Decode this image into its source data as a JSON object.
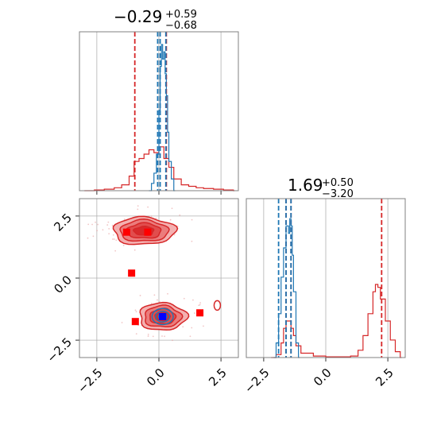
{
  "chart_data": {
    "type": "corner",
    "colors": {
      "series_a": "#1f77b4",
      "series_b": "#d62728",
      "marker_red": "#ff0000",
      "marker_blue": "#0000ff"
    },
    "params": [
      {
        "title_median": "−0.29",
        "title_plus": "+0.59",
        "title_minus": "−0.68",
        "range": [
          -3.2,
          3.2
        ]
      },
      {
        "title_median": "1.69",
        "title_plus": "+0.50",
        "title_minus": "−3.20",
        "range": [
          -3.2,
          3.2
        ]
      }
    ],
    "tick_values": [
      -2.5,
      0.0,
      2.5
    ],
    "tick_labels": [
      "−2.5",
      "0.0",
      "2.5"
    ],
    "grid": true,
    "series_a": {
      "quantiles_p1": [
        -0.05,
        0.05,
        0.28
      ],
      "quantiles_p2": [
        -1.9,
        -1.6,
        -1.4
      ],
      "hist_p1": {
        "x": [
          -0.4,
          -0.3,
          -0.2,
          -0.1,
          0.0,
          0.05,
          0.1,
          0.15,
          0.2,
          0.25,
          0.3,
          0.35,
          0.4,
          0.5,
          0.6
        ],
        "y": [
          0.0,
          0.05,
          0.12,
          0.25,
          0.55,
          0.85,
          1.0,
          0.9,
          0.95,
          0.8,
          0.65,
          0.4,
          0.2,
          0.08,
          0.0
        ]
      },
      "hist_p2": {
        "x": [
          -2.1,
          -2.0,
          -1.9,
          -1.8,
          -1.7,
          -1.6,
          -1.5,
          -1.45,
          -1.4,
          -1.35,
          -1.3,
          -1.2,
          -1.1
        ],
        "y": [
          0.0,
          0.1,
          0.3,
          0.55,
          0.75,
          0.9,
          0.85,
          0.95,
          0.9,
          0.7,
          0.45,
          0.1,
          0.0
        ]
      }
    },
    "series_b": {
      "quantiles_p1": [
        -0.97,
        0.3
      ],
      "quantiles_p2": [
        -1.6,
        -1.4,
        2.25
      ],
      "hist_p1": {
        "x": [
          -3.0,
          -2.6,
          -2.2,
          -1.8,
          -1.5,
          -1.2,
          -1.0,
          -0.8,
          -0.6,
          -0.4,
          -0.2,
          0.0,
          0.2,
          0.4,
          0.6,
          0.9,
          1.2,
          1.5,
          1.8,
          2.2,
          2.6,
          3.0
        ],
        "y": [
          0.0,
          0.005,
          0.01,
          0.02,
          0.04,
          0.1,
          0.2,
          0.22,
          0.25,
          0.28,
          0.26,
          0.3,
          0.22,
          0.16,
          0.08,
          0.04,
          0.03,
          0.02,
          0.015,
          0.01,
          0.005,
          0.0
        ]
      },
      "hist_p2": {
        "x": [
          -2.2,
          -2.0,
          -1.8,
          -1.7,
          -1.6,
          -1.5,
          -1.4,
          -1.3,
          -1.2,
          -1.0,
          -0.5,
          0.0,
          0.5,
          1.0,
          1.3,
          1.5,
          1.7,
          1.9,
          2.0,
          2.1,
          2.2,
          2.4,
          2.6,
          2.8,
          3.0
        ],
        "y": [
          0.0,
          0.02,
          0.1,
          0.2,
          0.25,
          0.25,
          0.2,
          0.15,
          0.08,
          0.03,
          0.01,
          0.005,
          0.005,
          0.01,
          0.05,
          0.15,
          0.3,
          0.45,
          0.5,
          0.48,
          0.4,
          0.25,
          0.12,
          0.04,
          0.0
        ]
      },
      "contour_centers": [
        {
          "x": -0.6,
          "y": 1.9,
          "rx": 1.25,
          "ry": 0.55
        },
        {
          "x": 0.15,
          "y": -1.55,
          "rx": 0.95,
          "ry": 0.55
        }
      ]
    },
    "red_markers": [
      {
        "x": -1.3,
        "y": 1.85
      },
      {
        "x": -0.45,
        "y": 1.85
      },
      {
        "x": -1.1,
        "y": 0.2
      },
      {
        "x": -0.95,
        "y": -1.75
      },
      {
        "x": 1.65,
        "y": -1.4
      }
    ],
    "blue_marker": {
      "x": 0.15,
      "y": -1.55
    }
  }
}
